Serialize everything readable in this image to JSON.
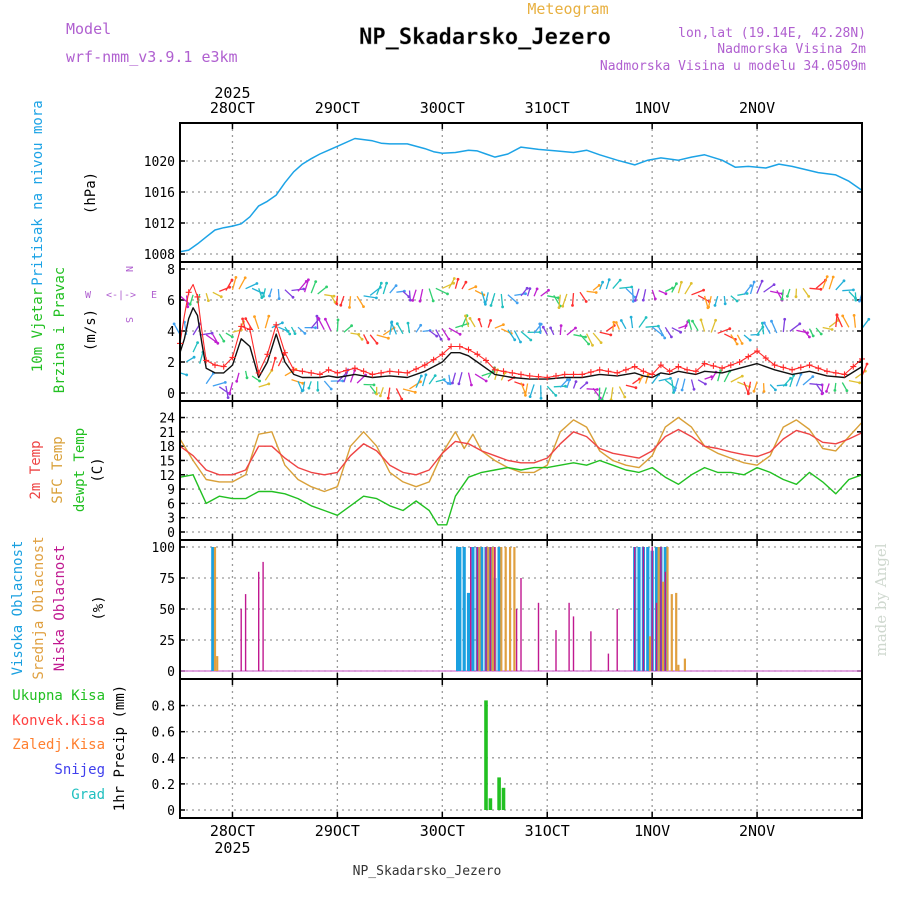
{
  "header": {
    "model_label": "Model",
    "model_name": "wrf-nmm_v3.9.1 e3km",
    "subtitle": "Meteogram",
    "station": "NP_Skadarsko_Jezero",
    "coords": "lon,lat (19.14E, 42.28N)",
    "elevation": "Nadmorska Visina 2m",
    "model_elevation": "Nadmorska Visina u modelu 34.0509m"
  },
  "footer": {
    "station": "NP_Skadarsko_Jezero",
    "credit": "made by Angel"
  },
  "time_axis": {
    "year": "2025",
    "start_hour": 0,
    "end_hour": 156,
    "ticks": [
      {
        "label": "28OCT",
        "hour": 12
      },
      {
        "label": "29OCT",
        "hour": 36
      },
      {
        "label": "30OCT",
        "hour": 60
      },
      {
        "label": "31OCT",
        "hour": 84
      },
      {
        "label": "1NOV",
        "hour": 108
      },
      {
        "label": "2NOV",
        "hour": 132
      }
    ]
  },
  "colors": {
    "pressure": "#1ca3e6",
    "wind": "#111111",
    "gust": "#ff2a2a",
    "t2m": "#ee4444",
    "tsfc": "#d9a038",
    "dew": "#22c022",
    "cloud_high": "#1aa0e0",
    "cloud_mid": "#e0a040",
    "cloud_low": "#c01890",
    "precip": "#22c022",
    "conv": "#ff4040",
    "frozen": "#ff8030",
    "snow": "#4040ee",
    "grad": "#20c0c0"
  },
  "chart_data": [
    {
      "id": "pressure",
      "type": "line",
      "title": "Pritisak na nivou mora",
      "ylabel": "(hPa)",
      "ylim": [
        1008,
        1024
      ],
      "yticks": [
        1008,
        1012,
        1016,
        1020
      ],
      "series": [
        {
          "name": "MSLP",
          "x": [
            0,
            2,
            4,
            6,
            8,
            10,
            12,
            14,
            16,
            18,
            20,
            22,
            24,
            26,
            28,
            30,
            32,
            34,
            36,
            40,
            44,
            46,
            48,
            52,
            56,
            58,
            60,
            63,
            66,
            68,
            70,
            72,
            75,
            78,
            82,
            86,
            90,
            93,
            96,
            100,
            104,
            107,
            110,
            114,
            117,
            120,
            124,
            127,
            130,
            134,
            137,
            140,
            143,
            146,
            150,
            153,
            156
          ],
          "values": [
            1008.3,
            1008.5,
            1009.3,
            1010.2,
            1011.1,
            1011.4,
            1011.6,
            1011.9,
            1012.8,
            1014.2,
            1014.8,
            1015.6,
            1017.2,
            1018.6,
            1019.6,
            1020.3,
            1020.9,
            1021.4,
            1021.9,
            1022.9,
            1022.6,
            1022.3,
            1022.2,
            1022.2,
            1021.6,
            1021.2,
            1021.0,
            1021.1,
            1021.4,
            1021.3,
            1020.9,
            1020.5,
            1020.9,
            1021.8,
            1021.5,
            1021.3,
            1021.1,
            1021.4,
            1020.8,
            1020.1,
            1019.5,
            1020.1,
            1020.4,
            1020.1,
            1020.5,
            1020.8,
            1020.1,
            1019.2,
            1019.3,
            1019.1,
            1019.6,
            1019.3,
            1018.9,
            1018.5,
            1018.2,
            1017.4,
            1016.2
          ]
        }
      ]
    },
    {
      "id": "wind",
      "type": "line",
      "title": "10m Vjetar",
      "title2": "Brzina i Pravac",
      "ylabel": "(m/s)",
      "compass": [
        "N",
        "W",
        "E",
        "S"
      ],
      "ylim": [
        0,
        8
      ],
      "yticks": [
        0,
        2,
        4,
        6,
        8
      ],
      "barb_rows": [
        0,
        4,
        6.5
      ],
      "series": [
        {
          "name": "Wind speed",
          "x": [
            0,
            1,
            2,
            3,
            4,
            5,
            6,
            8,
            10,
            12,
            14,
            16,
            18,
            20,
            22,
            24,
            26,
            28,
            30,
            32,
            34,
            36,
            40,
            44,
            48,
            52,
            56,
            60,
            62,
            64,
            66,
            68,
            70,
            72,
            76,
            80,
            84,
            88,
            92,
            96,
            100,
            104,
            106,
            108,
            110,
            112,
            114,
            116,
            118,
            120,
            124,
            128,
            132,
            136,
            140,
            144,
            148,
            152,
            156
          ],
          "values": [
            2.6,
            3.5,
            4.8,
            5.5,
            5.0,
            3.2,
            1.6,
            1.3,
            1.3,
            1.8,
            3.5,
            3.0,
            1.0,
            2.0,
            3.8,
            2.0,
            1.2,
            1.0,
            1.0,
            1.0,
            1.1,
            1.0,
            1.2,
            1.0,
            1.1,
            1.0,
            1.4,
            2.0,
            2.6,
            2.6,
            2.4,
            2.0,
            1.6,
            1.2,
            1.0,
            0.9,
            0.9,
            1.0,
            1.0,
            1.2,
            1.1,
            1.3,
            1.1,
            1.0,
            1.3,
            1.2,
            1.4,
            1.3,
            1.2,
            1.4,
            1.3,
            1.6,
            1.9,
            1.5,
            1.2,
            1.4,
            1.1,
            1.0,
            1.7
          ]
        },
        {
          "name": "Gust",
          "x": [
            0,
            1,
            2,
            3,
            4,
            5,
            6,
            8,
            10,
            12,
            14,
            16,
            18,
            20,
            22,
            24,
            26,
            28,
            30,
            32,
            34,
            36,
            40,
            44,
            48,
            52,
            56,
            60,
            62,
            64,
            66,
            68,
            70,
            72,
            76,
            80,
            84,
            88,
            92,
            96,
            100,
            104,
            106,
            108,
            110,
            112,
            114,
            116,
            118,
            120,
            124,
            128,
            132,
            136,
            140,
            144,
            148,
            152,
            156
          ],
          "values": [
            3.2,
            5.0,
            6.5,
            7.0,
            6.2,
            4.0,
            2.1,
            1.8,
            1.7,
            2.3,
            4.3,
            4.1,
            1.3,
            2.5,
            4.4,
            2.6,
            1.5,
            1.4,
            1.3,
            1.2,
            1.5,
            1.3,
            1.6,
            1.2,
            1.4,
            1.3,
            1.8,
            2.5,
            3.0,
            3.0,
            2.8,
            2.5,
            2.1,
            1.5,
            1.3,
            1.1,
            1.0,
            1.2,
            1.2,
            1.5,
            1.3,
            1.7,
            1.4,
            1.2,
            1.8,
            1.4,
            1.7,
            1.5,
            1.4,
            1.9,
            1.6,
            2.0,
            2.7,
            1.8,
            1.5,
            1.8,
            1.4,
            1.2,
            2.2
          ]
        }
      ]
    },
    {
      "id": "temperature",
      "type": "line",
      "labels": [
        "2m Temp",
        "SFC Temp",
        "dewpt Temp"
      ],
      "ylabel": "(C)",
      "ylim": [
        0,
        26
      ],
      "yticks": [
        0,
        3,
        6,
        9,
        12,
        15,
        18,
        21,
        24
      ],
      "series": [
        {
          "name": "2m Temp",
          "x": [
            0,
            3,
            6,
            9,
            12,
            15,
            18,
            21,
            24,
            27,
            30,
            33,
            36,
            39,
            42,
            45,
            48,
            51,
            54,
            57,
            60,
            63,
            66,
            69,
            72,
            75,
            78,
            81,
            84,
            87,
            90,
            93,
            96,
            99,
            102,
            105,
            108,
            111,
            114,
            117,
            120,
            123,
            126,
            129,
            132,
            135,
            138,
            141,
            144,
            147,
            150,
            153,
            156
          ],
          "values": [
            18.0,
            16.0,
            13.0,
            12.0,
            12.0,
            13.0,
            18.0,
            18.0,
            15.5,
            13.5,
            12.5,
            12.0,
            12.5,
            16.0,
            18.5,
            17.0,
            14.0,
            12.5,
            12.0,
            13.0,
            16.5,
            19.0,
            18.5,
            17.0,
            16.0,
            15.0,
            14.5,
            14.5,
            15.5,
            18.5,
            21.0,
            20.0,
            17.5,
            16.5,
            16.0,
            15.5,
            17.0,
            20.0,
            21.5,
            20.0,
            18.0,
            17.5,
            16.8,
            16.2,
            15.8,
            16.8,
            19.5,
            21.3,
            20.5,
            18.8,
            18.5,
            19.5,
            20.8
          ]
        },
        {
          "name": "SFC Temp",
          "x": [
            0,
            3,
            6,
            9,
            12,
            15,
            18,
            21,
            24,
            27,
            30,
            33,
            36,
            39,
            42,
            45,
            48,
            51,
            54,
            57,
            60,
            63,
            65,
            67,
            69,
            72,
            75,
            78,
            81,
            84,
            87,
            90,
            93,
            96,
            99,
            102,
            105,
            108,
            111,
            114,
            117,
            120,
            123,
            126,
            129,
            132,
            135,
            138,
            141,
            144,
            147,
            150,
            153,
            156
          ],
          "values": [
            19.5,
            15.0,
            11.0,
            10.5,
            10.5,
            12.0,
            20.5,
            21.0,
            14.0,
            11.0,
            9.5,
            8.5,
            9.5,
            18.0,
            21.0,
            18.0,
            12.5,
            10.5,
            9.5,
            10.5,
            16.5,
            21.0,
            17.5,
            20.5,
            17.0,
            15.0,
            13.5,
            12.5,
            12.5,
            14.0,
            21.0,
            23.5,
            22.0,
            17.0,
            15.0,
            14.0,
            13.5,
            16.0,
            22.0,
            24.0,
            22.0,
            18.0,
            16.5,
            15.5,
            14.5,
            14.0,
            16.0,
            22.0,
            23.5,
            21.5,
            17.5,
            17.0,
            20.0,
            23.0
          ]
        },
        {
          "name": "Dewpoint",
          "x": [
            0,
            3,
            6,
            9,
            12,
            15,
            18,
            21,
            24,
            27,
            30,
            33,
            36,
            39,
            42,
            45,
            48,
            51,
            54,
            57,
            59,
            61,
            63,
            66,
            69,
            72,
            75,
            78,
            81,
            84,
            87,
            90,
            93,
            96,
            99,
            102,
            105,
            108,
            111,
            114,
            117,
            120,
            123,
            126,
            129,
            132,
            135,
            138,
            141,
            144,
            147,
            150,
            153,
            156
          ],
          "values": [
            11.5,
            12.0,
            6.0,
            7.5,
            7.0,
            7.0,
            8.5,
            8.5,
            8.0,
            7.0,
            5.5,
            4.5,
            3.5,
            5.5,
            7.5,
            7.0,
            5.5,
            4.5,
            6.5,
            4.5,
            1.5,
            1.5,
            7.5,
            11.5,
            12.5,
            13.0,
            13.5,
            13.0,
            13.5,
            13.5,
            14.0,
            14.5,
            14.0,
            15.0,
            14.0,
            13.0,
            12.5,
            13.5,
            11.5,
            10.0,
            12.0,
            13.5,
            12.5,
            12.5,
            12.0,
            13.5,
            12.5,
            11.0,
            10.0,
            12.5,
            10.5,
            8.0,
            11.0,
            12.0
          ]
        }
      ]
    },
    {
      "id": "cloud",
      "type": "bar",
      "labels": [
        "Visoka Oblacnost",
        "Srednja Oblacnost",
        "Niska Oblacnost"
      ],
      "ylabel": "(%)",
      "ylim": [
        0,
        100
      ],
      "yticks": [
        0,
        25,
        50,
        75,
        100
      ],
      "series": [
        {
          "name": "High",
          "x": [
            7.5,
            63.5,
            64,
            65,
            66,
            67,
            68,
            69,
            70,
            71,
            72,
            73,
            104,
            105,
            106,
            107,
            108,
            109,
            110,
            111
          ],
          "values": [
            100,
            100,
            100,
            100,
            63,
            100,
            100,
            100,
            100,
            100,
            75,
            100,
            100,
            100,
            100,
            100,
            97,
            100,
            100,
            100
          ]
        },
        {
          "name": "Mid",
          "x": [
            8,
            8.5,
            68.5,
            70.5,
            71.5,
            72,
            73.5,
            74.5,
            75.5,
            76.5,
            107.5,
            109.5,
            110.5,
            111.5,
            112.5,
            113.5,
            114,
            115.5
          ],
          "values": [
            100,
            12,
            100,
            100,
            100,
            100,
            100,
            100,
            100,
            100,
            28,
            100,
            72,
            100,
            62,
            63,
            5,
            10
          ]
        },
        {
          "name": "Low",
          "x": [
            14,
            15,
            18,
            19,
            66.5,
            68,
            70,
            71,
            72,
            77,
            78,
            82,
            86,
            89,
            90,
            94,
            98,
            100,
            104,
            106,
            108,
            109,
            110,
            111
          ],
          "values": [
            50,
            62,
            80,
            88,
            100,
            100,
            100,
            100,
            100,
            50,
            75,
            55,
            33,
            55,
            44,
            32,
            14,
            50,
            100,
            100,
            100,
            55,
            100,
            80
          ]
        }
      ]
    },
    {
      "id": "precip",
      "type": "bar",
      "labels": [
        "Ukupna Kisa",
        "Konvek.Kisa",
        "Zaledj.Kisa",
        "Snijeg",
        "Grad"
      ],
      "ylabel": "1hr Precip (mm)",
      "ylim": [
        0,
        0.95
      ],
      "yticks": [
        0,
        0.2,
        0.4,
        0.6,
        0.8
      ],
      "series": [
        {
          "name": "Ukupna Kisa",
          "x": [
            70,
            71,
            73,
            74
          ],
          "values": [
            0.84,
            0.09,
            0.25,
            0.17
          ]
        }
      ]
    }
  ]
}
